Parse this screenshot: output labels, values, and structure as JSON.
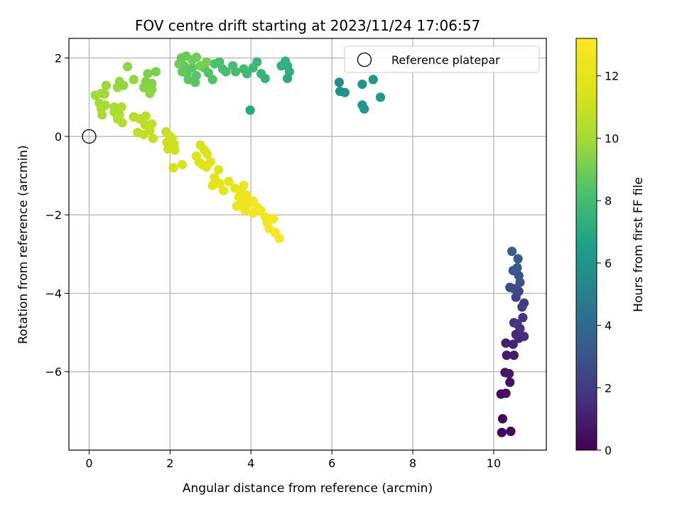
{
  "chart_data": {
    "type": "scatter",
    "title": "FOV centre drift starting at 2023/11/24 17:06:57",
    "xlabel": "Angular distance from reference (arcmin)",
    "ylabel": "Rotation from reference (arcmin)",
    "xlim": [
      -0.5,
      11.3
    ],
    "ylim": [
      -8.0,
      2.5
    ],
    "xticks": [
      0,
      2,
      4,
      6,
      8,
      10
    ],
    "yticks": [
      2,
      0,
      -2,
      -4,
      -6
    ],
    "grid": true,
    "legend": {
      "placement": "top-right",
      "entries": [
        "Reference platepar"
      ]
    },
    "reference_point": {
      "x": 0,
      "y": 0,
      "label": "Reference platepar"
    },
    "colorbar": {
      "label": "Hours from first FF file",
      "colormap": "viridis",
      "range": [
        0,
        13.2
      ],
      "ticks": [
        0,
        2,
        4,
        6,
        8,
        10,
        12
      ]
    },
    "points": [
      {
        "x": 10.2,
        "y": -7.55,
        "c": 0.1
      },
      {
        "x": 10.42,
        "y": -7.52,
        "c": 0.2
      },
      {
        "x": 10.22,
        "y": -7.2,
        "c": 0.3
      },
      {
        "x": 10.18,
        "y": -6.57,
        "c": 0.4
      },
      {
        "x": 10.3,
        "y": -6.55,
        "c": 0.5
      },
      {
        "x": 10.4,
        "y": -6.27,
        "c": 0.6
      },
      {
        "x": 10.28,
        "y": -6.02,
        "c": 0.7
      },
      {
        "x": 10.38,
        "y": -6.05,
        "c": 0.8
      },
      {
        "x": 10.32,
        "y": -5.58,
        "c": 0.9
      },
      {
        "x": 10.5,
        "y": -5.58,
        "c": 1.0
      },
      {
        "x": 10.3,
        "y": -5.27,
        "c": 1.1
      },
      {
        "x": 10.48,
        "y": -5.3,
        "c": 1.2
      },
      {
        "x": 10.55,
        "y": -5.05,
        "c": 1.3
      },
      {
        "x": 10.62,
        "y": -5.15,
        "c": 1.4
      },
      {
        "x": 10.75,
        "y": -5.1,
        "c": 1.5
      },
      {
        "x": 10.5,
        "y": -4.75,
        "c": 1.6
      },
      {
        "x": 10.65,
        "y": -4.9,
        "c": 1.7
      },
      {
        "x": 10.72,
        "y": -4.62,
        "c": 1.8
      },
      {
        "x": 10.58,
        "y": -4.78,
        "c": 1.9
      },
      {
        "x": 10.7,
        "y": -4.35,
        "c": 2.0
      },
      {
        "x": 10.75,
        "y": -4.25,
        "c": 2.1
      },
      {
        "x": 10.55,
        "y": -4.1,
        "c": 2.3
      },
      {
        "x": 10.62,
        "y": -3.95,
        "c": 2.5
      },
      {
        "x": 10.4,
        "y": -3.85,
        "c": 2.6
      },
      {
        "x": 10.5,
        "y": -3.88,
        "c": 2.7
      },
      {
        "x": 10.65,
        "y": -3.72,
        "c": 2.9
      },
      {
        "x": 10.62,
        "y": -3.55,
        "c": 3.0
      },
      {
        "x": 10.48,
        "y": -3.42,
        "c": 3.1
      },
      {
        "x": 10.58,
        "y": -3.35,
        "c": 3.2
      },
      {
        "x": 10.6,
        "y": -3.12,
        "c": 3.3
      },
      {
        "x": 10.45,
        "y": -2.93,
        "c": 3.4
      },
      {
        "x": 6.18,
        "y": 1.38,
        "c": 5.7
      },
      {
        "x": 6.2,
        "y": 1.15,
        "c": 5.8
      },
      {
        "x": 6.32,
        "y": 1.12,
        "c": 5.9
      },
      {
        "x": 6.75,
        "y": 1.33,
        "c": 6.0
      },
      {
        "x": 6.75,
        "y": 0.8,
        "c": 6.1
      },
      {
        "x": 6.8,
        "y": 0.7,
        "c": 6.15
      },
      {
        "x": 7.02,
        "y": 1.45,
        "c": 6.2
      },
      {
        "x": 7.2,
        "y": 1.0,
        "c": 6.3
      },
      {
        "x": 3.98,
        "y": 0.67,
        "c": 7.0
      },
      {
        "x": 4.9,
        "y": 1.48,
        "c": 7.1
      },
      {
        "x": 4.95,
        "y": 1.65,
        "c": 7.2
      },
      {
        "x": 4.75,
        "y": 1.8,
        "c": 7.3
      },
      {
        "x": 4.85,
        "y": 1.92,
        "c": 7.35
      },
      {
        "x": 4.9,
        "y": 1.8,
        "c": 7.4
      },
      {
        "x": 4.35,
        "y": 1.48,
        "c": 7.5
      },
      {
        "x": 4.25,
        "y": 1.6,
        "c": 7.6
      },
      {
        "x": 4.15,
        "y": 1.9,
        "c": 7.7
      },
      {
        "x": 4.05,
        "y": 1.75,
        "c": 7.8
      },
      {
        "x": 3.9,
        "y": 1.6,
        "c": 7.85
      },
      {
        "x": 3.82,
        "y": 1.72,
        "c": 7.9
      },
      {
        "x": 3.62,
        "y": 1.65,
        "c": 8.0
      },
      {
        "x": 3.55,
        "y": 1.8,
        "c": 8.05
      },
      {
        "x": 3.38,
        "y": 1.65,
        "c": 8.1
      },
      {
        "x": 3.3,
        "y": 1.72,
        "c": 8.15
      },
      {
        "x": 3.22,
        "y": 1.9,
        "c": 8.2
      },
      {
        "x": 3.1,
        "y": 1.85,
        "c": 8.25
      },
      {
        "x": 3.05,
        "y": 1.45,
        "c": 8.3
      },
      {
        "x": 2.95,
        "y": 1.62,
        "c": 8.35
      },
      {
        "x": 2.85,
        "y": 1.75,
        "c": 8.4
      },
      {
        "x": 2.65,
        "y": 1.55,
        "c": 8.45
      },
      {
        "x": 2.62,
        "y": 1.38,
        "c": 8.5
      },
      {
        "x": 2.55,
        "y": 1.75,
        "c": 8.55
      },
      {
        "x": 2.45,
        "y": 1.45,
        "c": 8.6
      },
      {
        "x": 2.42,
        "y": 1.6,
        "c": 8.65
      },
      {
        "x": 2.35,
        "y": 1.8,
        "c": 8.7
      },
      {
        "x": 2.3,
        "y": 1.65,
        "c": 8.75
      },
      {
        "x": 2.28,
        "y": 2.0,
        "c": 8.8
      },
      {
        "x": 2.4,
        "y": 2.05,
        "c": 8.85
      },
      {
        "x": 2.55,
        "y": 1.95,
        "c": 8.9
      },
      {
        "x": 2.65,
        "y": 2.02,
        "c": 8.95
      },
      {
        "x": 2.22,
        "y": 1.85,
        "c": 9.0
      },
      {
        "x": 2.75,
        "y": 1.8,
        "c": 9.05
      },
      {
        "x": 2.9,
        "y": 1.9,
        "c": 9.1
      },
      {
        "x": 1.65,
        "y": 1.65,
        "c": 9.2
      },
      {
        "x": 1.45,
        "y": 1.6,
        "c": 9.25
      },
      {
        "x": 1.4,
        "y": 1.4,
        "c": 9.3
      },
      {
        "x": 1.55,
        "y": 1.35,
        "c": 9.35
      },
      {
        "x": 1.35,
        "y": 1.25,
        "c": 9.4
      },
      {
        "x": 1.55,
        "y": 1.2,
        "c": 9.45
      },
      {
        "x": 1.5,
        "y": 1.1,
        "c": 9.5
      },
      {
        "x": 0.95,
        "y": 1.78,
        "c": 9.55
      },
      {
        "x": 1.1,
        "y": 1.45,
        "c": 9.6
      },
      {
        "x": 0.75,
        "y": 1.4,
        "c": 9.65
      },
      {
        "x": 0.85,
        "y": 1.3,
        "c": 9.7
      },
      {
        "x": 0.7,
        "y": 1.25,
        "c": 9.75
      },
      {
        "x": 0.42,
        "y": 1.3,
        "c": 9.8
      },
      {
        "x": 0.38,
        "y": 1.08,
        "c": 9.85
      },
      {
        "x": 0.3,
        "y": 1.1,
        "c": 9.9
      },
      {
        "x": 0.15,
        "y": 1.05,
        "c": 9.95
      },
      {
        "x": 0.25,
        "y": 0.85,
        "c": 10.0
      },
      {
        "x": 0.3,
        "y": 0.7,
        "c": 10.05
      },
      {
        "x": 0.4,
        "y": 0.8,
        "c": 10.1
      },
      {
        "x": 0.32,
        "y": 0.55,
        "c": 10.15
      },
      {
        "x": 0.62,
        "y": 0.75,
        "c": 10.2
      },
      {
        "x": 0.8,
        "y": 0.75,
        "c": 10.25
      },
      {
        "x": 0.62,
        "y": 0.62,
        "c": 10.3
      },
      {
        "x": 0.75,
        "y": 0.55,
        "c": 10.35
      },
      {
        "x": 0.7,
        "y": 0.45,
        "c": 10.4
      },
      {
        "x": 0.82,
        "y": 0.35,
        "c": 10.45
      },
      {
        "x": 1.1,
        "y": 0.5,
        "c": 10.5
      },
      {
        "x": 1.25,
        "y": 0.45,
        "c": 10.55
      },
      {
        "x": 1.4,
        "y": 0.52,
        "c": 10.6
      },
      {
        "x": 1.38,
        "y": 0.3,
        "c": 10.65
      },
      {
        "x": 1.55,
        "y": 0.32,
        "c": 10.7
      },
      {
        "x": 1.2,
        "y": 0.1,
        "c": 10.75
      },
      {
        "x": 1.35,
        "y": 0.05,
        "c": 10.8
      },
      {
        "x": 1.5,
        "y": 0.15,
        "c": 10.85
      },
      {
        "x": 1.58,
        "y": -0.05,
        "c": 10.9
      },
      {
        "x": 1.9,
        "y": 0.12,
        "c": 10.95
      },
      {
        "x": 2.0,
        "y": 0.0,
        "c": 11.0
      },
      {
        "x": 1.92,
        "y": -0.15,
        "c": 11.05
      },
      {
        "x": 2.05,
        "y": -0.05,
        "c": 11.1
      },
      {
        "x": 2.1,
        "y": -0.2,
        "c": 11.15
      },
      {
        "x": 1.95,
        "y": -0.32,
        "c": 11.2
      },
      {
        "x": 2.12,
        "y": -0.35,
        "c": 11.25
      },
      {
        "x": 2.08,
        "y": -0.8,
        "c": 11.3
      },
      {
        "x": 2.3,
        "y": -0.72,
        "c": 11.35
      },
      {
        "x": 2.75,
        "y": -0.22,
        "c": 11.4
      },
      {
        "x": 2.85,
        "y": -0.35,
        "c": 11.45
      },
      {
        "x": 2.65,
        "y": -0.5,
        "c": 11.5
      },
      {
        "x": 2.92,
        "y": -0.45,
        "c": 11.55
      },
      {
        "x": 2.72,
        "y": -0.65,
        "c": 11.6
      },
      {
        "x": 2.8,
        "y": -0.72,
        "c": 11.65
      },
      {
        "x": 2.9,
        "y": -0.78,
        "c": 11.7
      },
      {
        "x": 3.0,
        "y": -0.65,
        "c": 11.75
      },
      {
        "x": 3.2,
        "y": -0.85,
        "c": 11.8
      },
      {
        "x": 3.1,
        "y": -1.05,
        "c": 11.85
      },
      {
        "x": 3.22,
        "y": -1.2,
        "c": 11.9
      },
      {
        "x": 3.05,
        "y": -1.25,
        "c": 11.95
      },
      {
        "x": 3.32,
        "y": -1.38,
        "c": 12.0
      },
      {
        "x": 3.45,
        "y": -1.15,
        "c": 12.05
      },
      {
        "x": 3.6,
        "y": -1.32,
        "c": 12.1
      },
      {
        "x": 3.75,
        "y": -1.4,
        "c": 12.15
      },
      {
        "x": 3.82,
        "y": -1.25,
        "c": 12.2
      },
      {
        "x": 3.7,
        "y": -1.55,
        "c": 12.25
      },
      {
        "x": 3.9,
        "y": -1.5,
        "c": 12.3
      },
      {
        "x": 3.65,
        "y": -1.78,
        "c": 12.35
      },
      {
        "x": 3.8,
        "y": -1.68,
        "c": 12.4
      },
      {
        "x": 3.95,
        "y": -1.7,
        "c": 12.45
      },
      {
        "x": 3.85,
        "y": -1.88,
        "c": 12.5
      },
      {
        "x": 4.05,
        "y": -1.65,
        "c": 12.55
      },
      {
        "x": 4.15,
        "y": -1.8,
        "c": 12.6
      },
      {
        "x": 4.05,
        "y": -1.95,
        "c": 12.65
      },
      {
        "x": 4.25,
        "y": -1.9,
        "c": 12.7
      },
      {
        "x": 4.35,
        "y": -2.05,
        "c": 12.75
      },
      {
        "x": 4.4,
        "y": -2.2,
        "c": 12.8
      },
      {
        "x": 4.55,
        "y": -2.1,
        "c": 12.85
      },
      {
        "x": 4.45,
        "y": -2.35,
        "c": 12.9
      },
      {
        "x": 4.6,
        "y": -2.45,
        "c": 12.95
      },
      {
        "x": 4.7,
        "y": -2.6,
        "c": 13.0
      }
    ]
  }
}
